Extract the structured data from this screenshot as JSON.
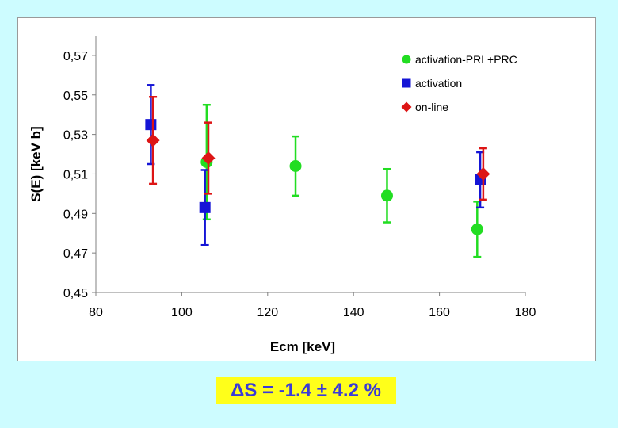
{
  "chart_data": {
    "type": "scatter",
    "title": "",
    "xlabel": "Ecm [keV]",
    "ylabel": "S(E) [keV b]",
    "xlim": [
      80,
      180
    ],
    "ylim": [
      0.45,
      0.58
    ],
    "xticks": [
      80,
      100,
      120,
      140,
      160,
      180
    ],
    "xtick_labels": [
      "80",
      "100",
      "120",
      "140",
      "160",
      "180"
    ],
    "yticks": [
      0.45,
      0.47,
      0.49,
      0.51,
      0.53,
      0.55,
      0.57
    ],
    "ytick_labels": [
      "0,45",
      "0,47",
      "0,49",
      "0,51",
      "0,53",
      "0,55",
      "0,57"
    ],
    "grid": false,
    "legend_position": "top-right",
    "series": [
      {
        "name": "activation-PRL+PRC",
        "color": "#22dd22",
        "marker": "circle",
        "points": [
          {
            "x": 105.8,
            "y": 0.516,
            "err": 0.029
          },
          {
            "x": 126.5,
            "y": 0.514,
            "err": 0.015
          },
          {
            "x": 147.8,
            "y": 0.499,
            "err": 0.0135
          },
          {
            "x": 168.8,
            "y": 0.482,
            "err": 0.014
          }
        ]
      },
      {
        "name": "activation",
        "color": "#1515d6",
        "marker": "square",
        "points": [
          {
            "x": 92.8,
            "y": 0.535,
            "err": 0.02
          },
          {
            "x": 105.4,
            "y": 0.493,
            "err": 0.019
          },
          {
            "x": 169.5,
            "y": 0.507,
            "err": 0.014
          }
        ]
      },
      {
        "name": "on-line",
        "color": "#dd1515",
        "marker": "diamond",
        "points": [
          {
            "x": 93.3,
            "y": 0.527,
            "err": 0.022
          },
          {
            "x": 106.2,
            "y": 0.518,
            "err": 0.018
          },
          {
            "x": 170.2,
            "y": 0.51,
            "err": 0.013
          }
        ]
      }
    ]
  },
  "result": {
    "text": "ΔS = -1.4 ± 4.2 %"
  }
}
